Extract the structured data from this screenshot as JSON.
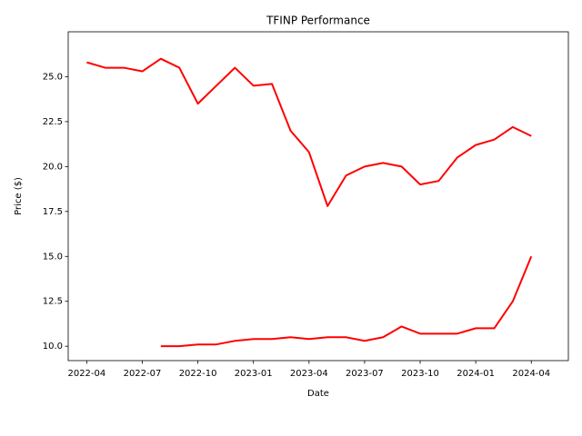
{
  "chart_data": {
    "type": "line",
    "title": "TFINP Performance",
    "xlabel": "Date",
    "ylabel": "Price ($)",
    "x": [
      "2022-04",
      "2022-05",
      "2022-06",
      "2022-07",
      "2022-08",
      "2022-09",
      "2022-10",
      "2022-11",
      "2022-12",
      "2023-01",
      "2023-02",
      "2023-03",
      "2023-04",
      "2023-05",
      "2023-06",
      "2023-07",
      "2023-08",
      "2023-09",
      "2023-10",
      "2023-11",
      "2023-12",
      "2024-01",
      "2024-02",
      "2024-03",
      "2024-04"
    ],
    "series": [
      {
        "color": "#ff0000",
        "values": [
          25.8,
          25.5,
          25.5,
          25.3,
          26.0,
          25.5,
          23.5,
          24.5,
          25.5,
          24.5,
          24.6,
          22.0,
          20.8,
          17.8,
          19.5,
          20.0,
          20.2,
          20.0,
          19.0,
          19.2,
          20.5,
          21.2,
          21.5,
          22.2,
          21.7
        ]
      },
      {
        "color": "#ff0000",
        "values": [
          null,
          null,
          null,
          null,
          10.0,
          10.0,
          10.1,
          10.1,
          10.3,
          10.4,
          10.4,
          10.5,
          10.4,
          10.5,
          10.5,
          10.3,
          10.5,
          11.1,
          10.7,
          10.7,
          10.7,
          11.0,
          11.0,
          12.5,
          15.0
        ]
      }
    ],
    "xlim": [
      "2022-03",
      "2024-06"
    ],
    "xticks": [
      "2022-04",
      "2022-07",
      "2022-10",
      "2023-01",
      "2023-04",
      "2023-07",
      "2023-10",
      "2024-01",
      "2024-04"
    ],
    "ylim": [
      9.2,
      27.5
    ],
    "yticks": [
      {
        "value": 10,
        "label": "10.0"
      },
      12.5,
      {
        "value": 15,
        "label": "15.0"
      },
      17.5,
      {
        "value": 20,
        "label": "20.0"
      },
      22.5,
      {
        "value": 25,
        "label": "25.0"
      }
    ],
    "grid": false
  }
}
